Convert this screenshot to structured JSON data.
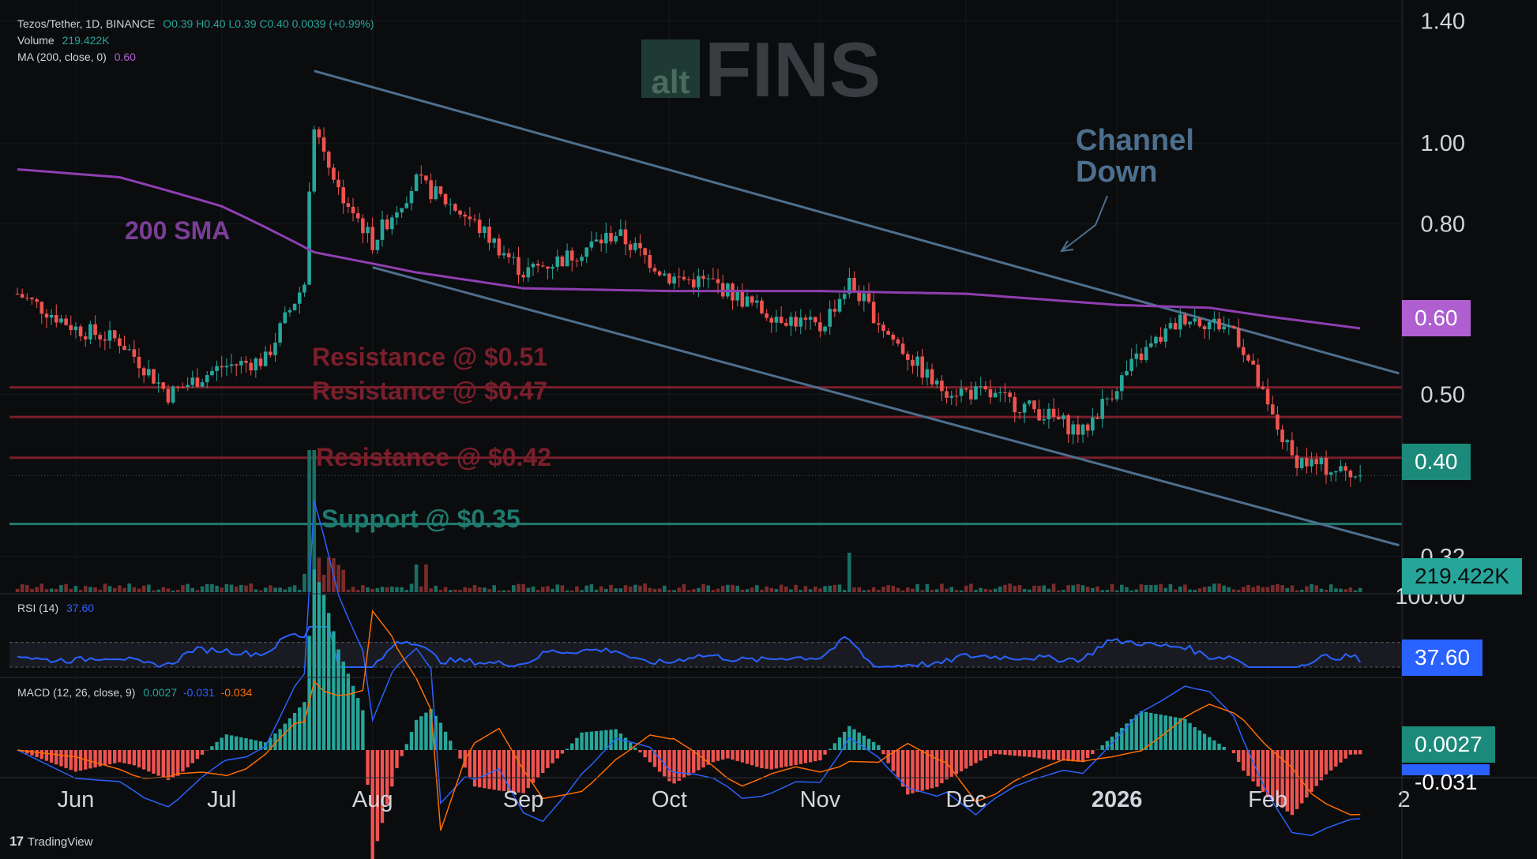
{
  "header": {
    "symbol": "Tezos/Tether, 1D, BINANCE",
    "ohlc": "O0.39 H0.40 L0.39 C0.40 0.0039 (+0.99%)",
    "volume_label": "Volume",
    "volume_value": "219.422K",
    "ma_label": "MA (200, close, 0)",
    "ma_value": "0.60"
  },
  "watermark": {
    "alt": "alt",
    "fins": "FINS"
  },
  "annotations": {
    "sma": "200 SMA",
    "channel_line1": "Channel",
    "channel_line2": "Down",
    "res1": "Resistance @ $0.51",
    "res2": "Resistance @ $0.47",
    "res3": "Resistance @ $0.42",
    "support": "Support @ $0.35"
  },
  "badges": {
    "ma": "0.60",
    "price": "0.40",
    "volume": "219.422K",
    "rsi": "37.60",
    "macd": "0.0027",
    "signal": "-0.031"
  },
  "rsi": {
    "label": "RSI (14)",
    "value": "37.60",
    "top_tick": "100.00"
  },
  "macd": {
    "label": "MACD (12, 26, close, 9)",
    "v1": "0.0027",
    "v2": "-0.031",
    "v3": "-0.034"
  },
  "footer": {
    "brand": "TradingView"
  },
  "colors": {
    "up": "#26a69a",
    "down": "#ef5350",
    "sma": "#8e3fb0",
    "channel": "#4d6f8e",
    "resistance": "#7a1f2b",
    "support": "#1f7a6e",
    "rsi": "#2962ff",
    "macd": "#2962ff",
    "signal": "#ff6d00"
  },
  "chart_data": {
    "type": "line",
    "title": "Tezos/Tether, 1D, BINANCE",
    "x_ticks": [
      "Jun",
      "Jul",
      "Aug",
      "Sep",
      "Oct",
      "Nov",
      "Dec",
      "2026",
      "Feb",
      "2"
    ],
    "y_ticks": [
      "1.40",
      "1.00",
      "0.80",
      "0.50",
      "0.32"
    ],
    "y_scale": "log",
    "ylim": [
      0.29,
      1.42
    ],
    "series": [
      {
        "name": "Price",
        "x": [
          "May 20",
          "Jun 1",
          "Jun 10",
          "Jun 20",
          "Jul 1",
          "Jul 10",
          "Jul 18",
          "Jul 20",
          "Jul 25",
          "Aug 1",
          "Aug 10",
          "Aug 20",
          "Sep 1",
          "Sep 10",
          "Sep 20",
          "Oct 1",
          "Oct 10",
          "Oct 20",
          "Nov 1",
          "Nov 7",
          "Nov 15",
          "Nov 25",
          "Dec 5",
          "Dec 15",
          "Dec 25",
          "Jan 5",
          "Jan 15",
          "Jan 25",
          "Feb 1",
          "Feb 6",
          "Feb 12",
          "Feb 20"
        ],
        "values": [
          0.66,
          0.6,
          0.58,
          0.5,
          0.54,
          0.55,
          0.68,
          1.05,
          0.88,
          0.76,
          0.9,
          0.82,
          0.7,
          0.73,
          0.78,
          0.69,
          0.68,
          0.63,
          0.6,
          0.68,
          0.59,
          0.51,
          0.5,
          0.48,
          0.45,
          0.55,
          0.62,
          0.6,
          0.48,
          0.42,
          0.41,
          0.4
        ]
      },
      {
        "name": "200 SMA",
        "x": [
          "May 20",
          "Jun 10",
          "Jul 1",
          "Jul 20",
          "Aug 10",
          "Sep 1",
          "Oct 1",
          "Nov 1",
          "Dec 1",
          "Jan 1",
          "Jan 20",
          "Feb 1",
          "Feb 20"
        ],
        "values": [
          0.93,
          0.91,
          0.84,
          0.74,
          0.7,
          0.67,
          0.665,
          0.665,
          0.66,
          0.64,
          0.635,
          0.62,
          0.6
        ]
      }
    ],
    "horizontal_levels": [
      {
        "label": "Resistance @ $0.51",
        "value": 0.51
      },
      {
        "label": "Resistance @ $0.47",
        "value": 0.47
      },
      {
        "label": "Resistance @ $0.42",
        "value": 0.42
      },
      {
        "label": "Support @ $0.35",
        "value": 0.35
      }
    ],
    "channel": {
      "upper": [
        [
          "Jul 20",
          1.22
        ],
        [
          "Feb 28",
          0.53
        ]
      ],
      "lower": [
        [
          "Aug 1",
          0.71
        ],
        [
          "Feb 28",
          0.33
        ]
      ]
    }
  }
}
